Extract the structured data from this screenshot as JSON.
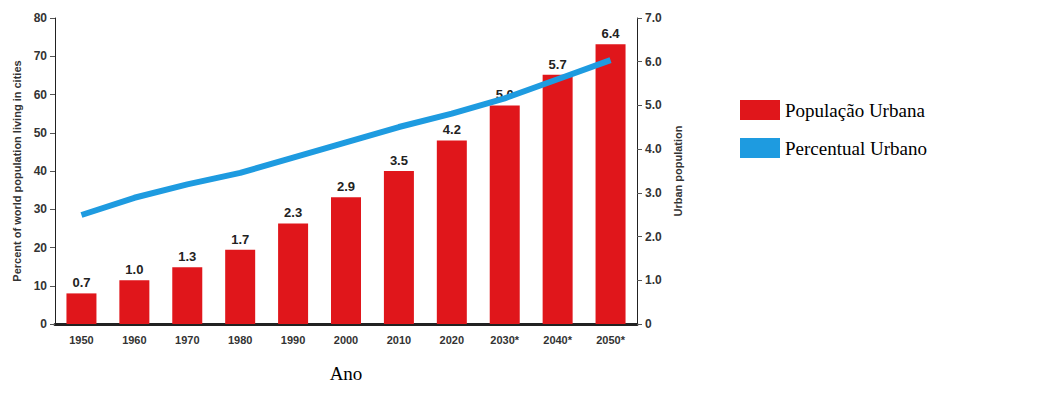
{
  "chart_data": {
    "type": "bar",
    "categories": [
      "1950",
      "1960",
      "1970",
      "1980",
      "1990",
      "2000",
      "2010",
      "2020",
      "2030*",
      "2040*",
      "2050*"
    ],
    "x_label": "Ano",
    "y_label": "Percent of world population living in cities",
    "y2_label": "Urban population",
    "ylim": [
      0,
      80
    ],
    "yticks": [
      0,
      10,
      20,
      30,
      40,
      50,
      60,
      70,
      80
    ],
    "y2lim": [
      0,
      7
    ],
    "y2ticks": [
      0,
      {
        "value": 1,
        "label": "1.0"
      },
      {
        "value": 2,
        "label": "2.0"
      },
      {
        "value": 3,
        "label": "3.0"
      },
      {
        "value": 4,
        "label": "4.0"
      },
      {
        "value": 5,
        "label": "5.0"
      },
      {
        "value": 6,
        "label": "6.0"
      },
      {
        "value": 7,
        "label": "7.0"
      }
    ],
    "grid": false,
    "legend": "right",
    "series": [
      {
        "name": "População Urbana",
        "type": "bar",
        "axis": "y2",
        "color": "#e0161b",
        "values": [
          0.7,
          1.0,
          1.3,
          1.7,
          2.3,
          2.9,
          3.5,
          4.2,
          5.0,
          5.7,
          6.4
        ],
        "value_labels": [
          "0.7",
          "1.0",
          "1.3",
          "1.7",
          "2.3",
          "2.9",
          "3.5",
          "4.2",
          "5.0",
          "5.7",
          "6.4"
        ],
        "data_labels": true
      },
      {
        "name": "Percentual Urbano",
        "type": "line",
        "color": "#1e9be0",
        "values": [
          28.5,
          33,
          36.5,
          39.5,
          43.5,
          47.5,
          51.5,
          55,
          59,
          64,
          69
        ]
      }
    ]
  }
}
